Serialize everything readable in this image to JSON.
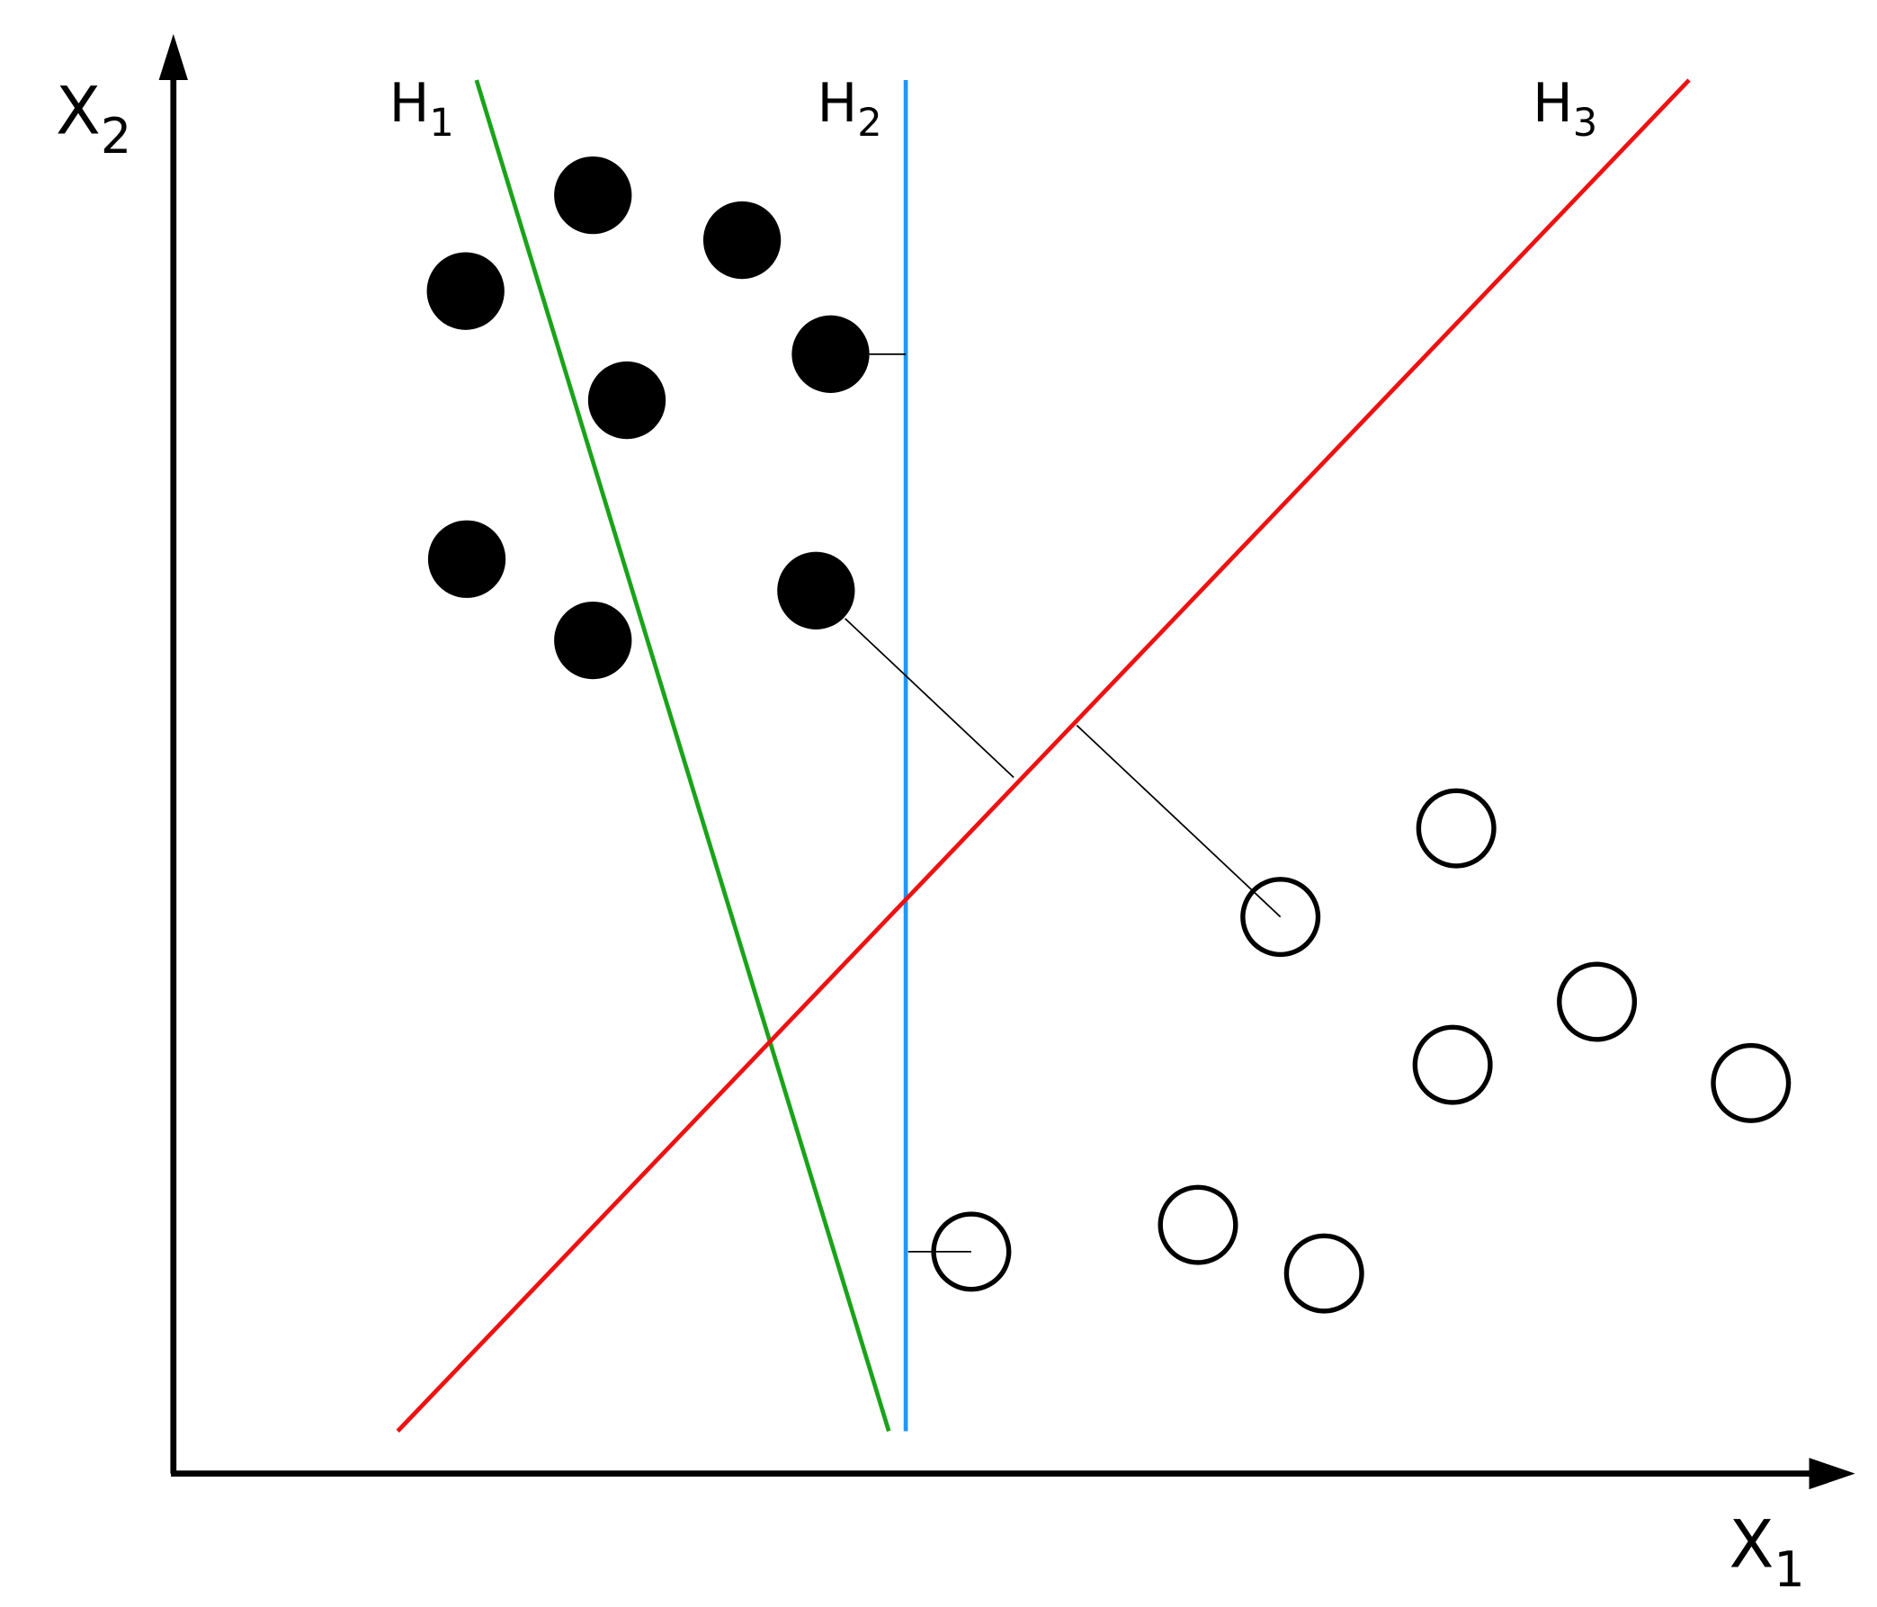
{
  "axes": {
    "x": {
      "text": "X",
      "subscript": "1"
    },
    "y": {
      "text": "X",
      "subscript": "2"
    }
  },
  "hyperplanes": [
    {
      "text": "H",
      "subscript": "1"
    },
    {
      "text": "H",
      "subscript": "2"
    },
    {
      "text": "H",
      "subscript": "3"
    }
  ]
}
